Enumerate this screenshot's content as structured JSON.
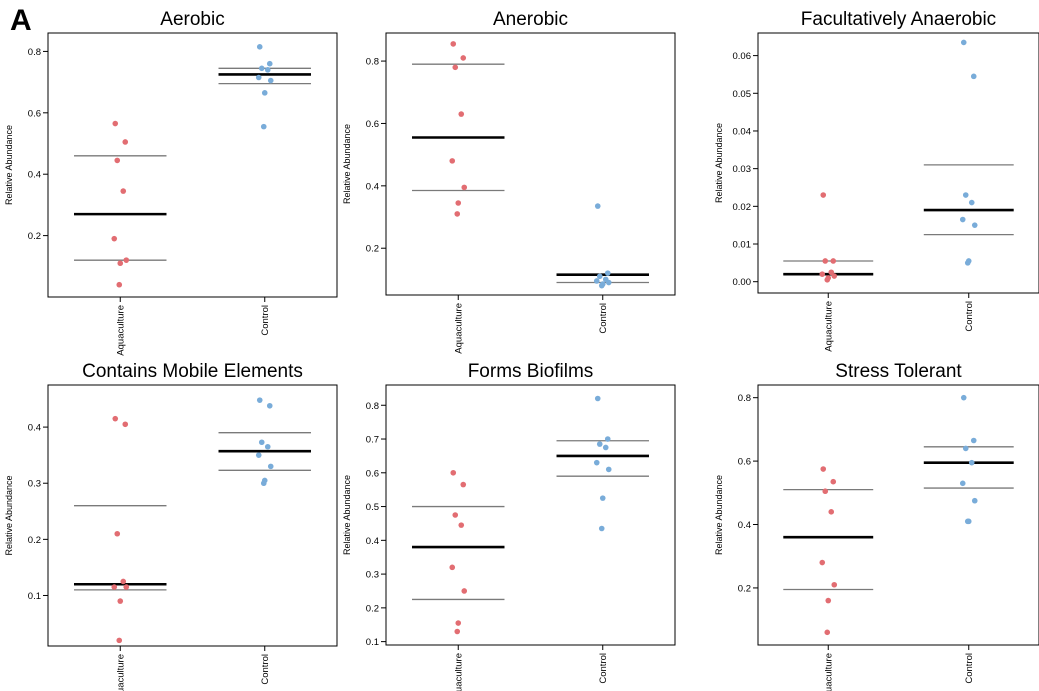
{
  "figure": {
    "panel_label": "A"
  },
  "colors": {
    "aquaculture": "#e26d72",
    "control": "#79acd9",
    "median": "#000000",
    "quartile": "#7a7a7a"
  },
  "chart_data": [
    {
      "type": "scatter",
      "title": "Aerobic",
      "ylabel": "Relative Abundance",
      "xlabel": "",
      "categories": [
        "Aquaculture",
        "Control"
      ],
      "ylim": [
        0.0,
        0.86
      ],
      "yticks": [
        0.2,
        0.4,
        0.6,
        0.8
      ],
      "ytick_labels": [
        "0.2",
        "0.4",
        "0.6",
        "0.8"
      ],
      "series": [
        {
          "values": [
            0.565,
            0.505,
            0.445,
            0.345,
            0.19,
            0.12,
            0.11,
            0.04
          ],
          "median": 0.27,
          "q1": 0.12,
          "q3": 0.46
        },
        {
          "values": [
            0.815,
            0.76,
            0.745,
            0.74,
            0.715,
            0.705,
            0.665,
            0.555
          ],
          "median": 0.725,
          "q1": 0.695,
          "q3": 0.745
        }
      ]
    },
    {
      "type": "scatter",
      "title": "Anerobic",
      "ylabel": "Relative Abundance",
      "xlabel": "",
      "categories": [
        "Aquaculture",
        "Control"
      ],
      "ylim": [
        0.05,
        0.89
      ],
      "yticks": [
        0.2,
        0.4,
        0.6,
        0.8
      ],
      "ytick_labels": [
        "0.2",
        "0.4",
        "0.6",
        "0.8"
      ],
      "series": [
        {
          "values": [
            0.855,
            0.81,
            0.78,
            0.63,
            0.48,
            0.395,
            0.345,
            0.31
          ],
          "median": 0.555,
          "q1": 0.385,
          "q3": 0.79
        },
        {
          "values": [
            0.335,
            0.12,
            0.11,
            0.1,
            0.095,
            0.09,
            0.085,
            0.08
          ],
          "median": 0.115,
          "q1": 0.09,
          "q3": 0.115
        }
      ]
    },
    {
      "type": "scatter",
      "title": "Facultatively Anaerobic",
      "ylabel": "Relative Abundance",
      "xlabel": "",
      "categories": [
        "Aquaculture",
        "Control"
      ],
      "ylim": [
        -0.003,
        0.066
      ],
      "yticks": [
        0.0,
        0.01,
        0.02,
        0.03,
        0.04,
        0.05,
        0.06
      ],
      "ytick_labels": [
        "0.00",
        "0.01",
        "0.02",
        "0.03",
        "0.04",
        "0.05",
        "0.06"
      ],
      "series": [
        {
          "values": [
            0.023,
            0.0055,
            0.0055,
            0.0025,
            0.002,
            0.0015,
            0.001,
            0.0005
          ],
          "median": 0.002,
          "q1": 0.002,
          "q3": 0.0055
        },
        {
          "values": [
            0.0635,
            0.0545,
            0.023,
            0.021,
            0.0165,
            0.015,
            0.0055,
            0.005
          ],
          "median": 0.019,
          "q1": 0.0125,
          "q3": 0.031
        }
      ]
    },
    {
      "type": "scatter",
      "title": "Contains Mobile Elements",
      "ylabel": "Relative Abundance",
      "xlabel": "",
      "categories": [
        "Aquaculture",
        "Control"
      ],
      "ylim": [
        0.01,
        0.475
      ],
      "yticks": [
        0.1,
        0.2,
        0.3,
        0.4
      ],
      "ytick_labels": [
        "0.1",
        "0.2",
        "0.3",
        "0.4"
      ],
      "series": [
        {
          "values": [
            0.415,
            0.405,
            0.21,
            0.125,
            0.115,
            0.115,
            0.09,
            0.02
          ],
          "median": 0.12,
          "q1": 0.11,
          "q3": 0.26
        },
        {
          "values": [
            0.448,
            0.438,
            0.373,
            0.365,
            0.35,
            0.33,
            0.305,
            0.3
          ],
          "median": 0.357,
          "q1": 0.323,
          "q3": 0.39
        }
      ]
    },
    {
      "type": "scatter",
      "title": "Forms Biofilms",
      "ylabel": "Relative Abundance",
      "xlabel": "",
      "categories": [
        "Aquaculture",
        "Control"
      ],
      "ylim": [
        0.09,
        0.86
      ],
      "yticks": [
        0.1,
        0.2,
        0.3,
        0.4,
        0.5,
        0.6,
        0.7,
        0.8
      ],
      "ytick_labels": [
        "0.1",
        "0.2",
        "0.3",
        "0.4",
        "0.5",
        "0.6",
        "0.7",
        "0.8"
      ],
      "series": [
        {
          "values": [
            0.6,
            0.565,
            0.475,
            0.445,
            0.32,
            0.25,
            0.155,
            0.13
          ],
          "median": 0.38,
          "q1": 0.225,
          "q3": 0.5
        },
        {
          "values": [
            0.82,
            0.7,
            0.685,
            0.675,
            0.63,
            0.61,
            0.525,
            0.435
          ],
          "median": 0.65,
          "q1": 0.59,
          "q3": 0.695
        }
      ]
    },
    {
      "type": "scatter",
      "title": "Stress Tolerant",
      "ylabel": "Relative Abundance",
      "xlabel": "",
      "categories": [
        "Aquaculture",
        "Control"
      ],
      "ylim": [
        0.02,
        0.84
      ],
      "yticks": [
        0.2,
        0.4,
        0.6,
        0.8
      ],
      "ytick_labels": [
        "0.2",
        "0.4",
        "0.6",
        "0.8"
      ],
      "series": [
        {
          "values": [
            0.575,
            0.535,
            0.505,
            0.44,
            0.28,
            0.21,
            0.16,
            0.06
          ],
          "median": 0.36,
          "q1": 0.195,
          "q3": 0.51
        },
        {
          "values": [
            0.8,
            0.665,
            0.64,
            0.595,
            0.53,
            0.475,
            0.41,
            0.41
          ],
          "median": 0.595,
          "q1": 0.515,
          "q3": 0.645
        }
      ]
    }
  ]
}
